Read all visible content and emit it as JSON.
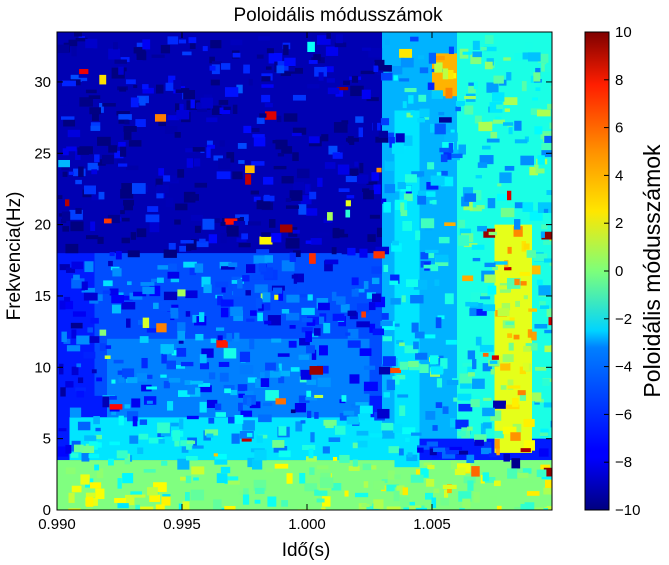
{
  "chart_data": {
    "type": "heatmap",
    "title": "Poloidális módusszámok",
    "xlabel": "Idő(s)",
    "ylabel": "Frekvencia(Hz)",
    "xlim": [
      0.99,
      1.0098
    ],
    "ylim": [
      0,
      33.5
    ],
    "x_ticks": [
      "0.990",
      "0.995",
      "1.000",
      "1.005"
    ],
    "x_tick_values": [
      0.99,
      0.995,
      1.0,
      1.005
    ],
    "y_ticks": [
      "0",
      "5",
      "10",
      "15",
      "20",
      "25",
      "30"
    ],
    "y_tick_values": [
      0,
      5,
      10,
      15,
      20,
      25,
      30
    ],
    "colorbar": {
      "label": "Poloidális módusszámok",
      "colormap": "jet",
      "range": [
        -10,
        10
      ],
      "ticks": [
        "10",
        "8",
        "6",
        "4",
        "2",
        "0",
        "−2",
        "−4",
        "−6",
        "−8",
        "−10"
      ],
      "tick_values": [
        10,
        8,
        6,
        4,
        2,
        0,
        -2,
        -4,
        -6,
        -8,
        -10
      ]
    },
    "regions": [
      {
        "x": [
          0.99,
          1.0099
        ],
        "y": [
          0,
          33.5
        ],
        "value": -7
      },
      {
        "x": [
          0.99,
          1.003
        ],
        "y": [
          18,
          33.5
        ],
        "value": -9
      },
      {
        "x": [
          0.9915,
          1.003
        ],
        "y": [
          8,
          18
        ],
        "value": -6
      },
      {
        "x": [
          0.992,
          1.0025
        ],
        "y": [
          6.5,
          12
        ],
        "value": -5
      },
      {
        "x": [
          0.9905,
          1.004
        ],
        "y": [
          3.5,
          6.5
        ],
        "value": -3
      },
      {
        "x": [
          0.99,
          1.0099
        ],
        "y": [
          0,
          3.5
        ],
        "value": 0
      },
      {
        "x": [
          1.003,
          1.006
        ],
        "y": [
          5,
          33.5
        ],
        "value": -4
      },
      {
        "x": [
          1.0035,
          1.0045
        ],
        "y": [
          3,
          28
        ],
        "value": -3
      },
      {
        "x": [
          1.006,
          1.0099
        ],
        "y": [
          5,
          33.5
        ],
        "value": -2
      },
      {
        "x": [
          1.0075,
          1.009
        ],
        "y": [
          4,
          20
        ],
        "value": 2
      },
      {
        "x": [
          1.005,
          1.006
        ],
        "y": [
          29,
          32
        ],
        "value": 4
      }
    ]
  }
}
